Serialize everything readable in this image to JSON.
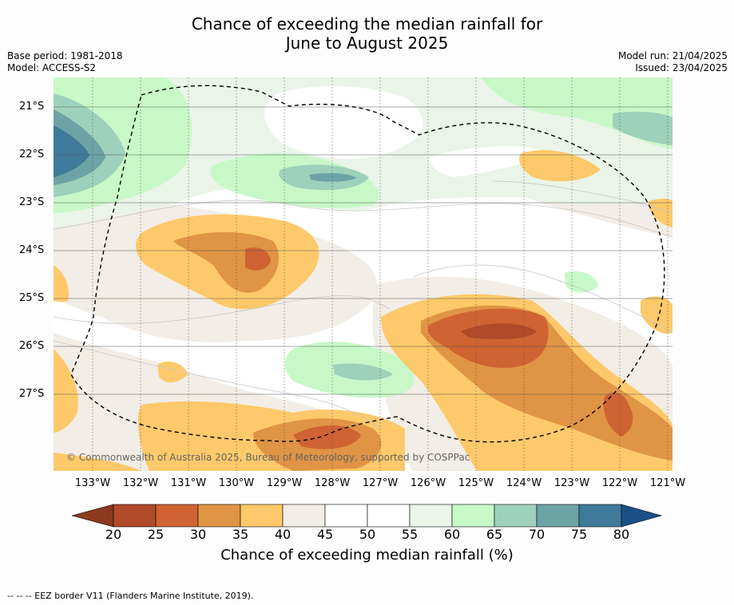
{
  "title": {
    "line1": "Chance of exceeding the median rainfall for",
    "line2": "June to August 2025"
  },
  "meta": {
    "base_period": "Base period: 1981-2018",
    "model": "Model: ACCESS-S2",
    "model_run": "Model run: 21/04/2025",
    "issued": "Issued: 23/04/2025"
  },
  "copyright": "© Commonwealth of Australia 2025, Bureau of Meteorology, supported by COSPPac",
  "map": {
    "lat_labels": [
      "21°S",
      "22°S",
      "23°S",
      "24°S",
      "25°S",
      "26°S",
      "27°S"
    ],
    "lon_labels": [
      "133°W",
      "132°W",
      "131°W",
      "130°W",
      "129°W",
      "128°W",
      "127°W",
      "126°W",
      "125°W",
      "124°W",
      "123°W",
      "122°W",
      "121°W"
    ]
  },
  "colorbar": {
    "ticks": [
      "20",
      "25",
      "30",
      "35",
      "40",
      "45",
      "50",
      "55",
      "60",
      "65",
      "70",
      "75",
      "80"
    ],
    "colors": [
      "#8b3a1f",
      "#b04a28",
      "#cf6332",
      "#e09445",
      "#fec96a",
      "#f2ede6",
      "#ffffff",
      "#ffffff",
      "#eaf4e9",
      "#c8f8c8",
      "#9ed1bb",
      "#6ea3a6",
      "#3f7a9b",
      "#1a4f86"
    ],
    "label": "Chance of exceeding median rainfall (%)"
  },
  "footnote": "--  --  -- EEZ border V11 (Flanders Marine Institute, 2019)."
}
